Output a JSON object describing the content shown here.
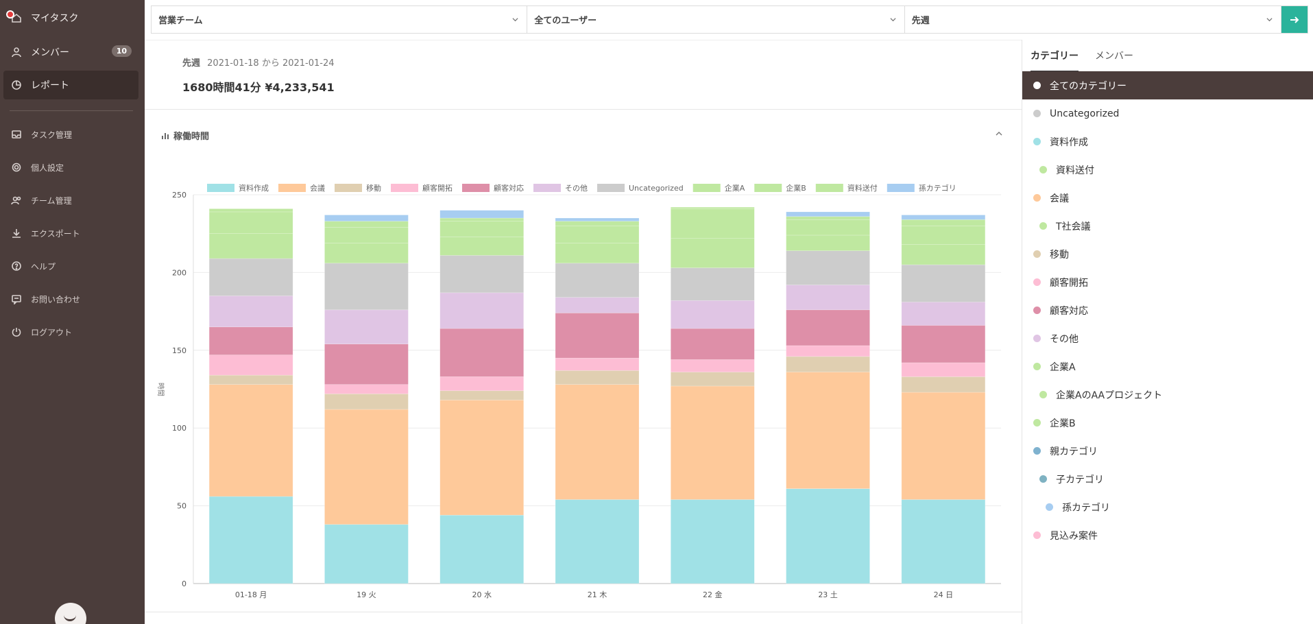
{
  "sidebar": {
    "items": [
      {
        "label": "マイタスク",
        "icon": "home-icon"
      },
      {
        "label": "メンバー",
        "icon": "user-icon",
        "badge": "10"
      },
      {
        "label": "レポート",
        "icon": "report-icon",
        "active": true
      },
      {
        "label": "タスク管理",
        "icon": "inbox-icon"
      },
      {
        "label": "個人設定",
        "icon": "gear-icon"
      },
      {
        "label": "チーム管理",
        "icon": "team-icon"
      },
      {
        "label": "エクスポート",
        "icon": "download-icon"
      },
      {
        "label": "ヘルプ",
        "icon": "help-icon"
      },
      {
        "label": "お問い合わせ",
        "icon": "message-icon"
      },
      {
        "label": "ログアウト",
        "icon": "power-icon"
      }
    ]
  },
  "filters": {
    "team": "営業チーム",
    "user": "全てのユーザー",
    "period": "先週"
  },
  "summary": {
    "period_label": "先週",
    "period_range": "2021-01-18 から 2021-01-24",
    "total": "1680時間41分 ¥4,233,541"
  },
  "section": {
    "title": "稼働時間"
  },
  "right_panel": {
    "tabs": [
      "カテゴリー",
      "メンバー"
    ],
    "active_tab": 0,
    "categories": [
      {
        "label": "全てのカテゴリー",
        "color": "#ffffff",
        "indent": 0,
        "active": true
      },
      {
        "label": "Uncategorized",
        "color": "#cccccc",
        "indent": 0
      },
      {
        "label": "資料作成",
        "color": "#a0e1e6",
        "indent": 0
      },
      {
        "label": "資料送付",
        "color": "#bfe8a0",
        "indent": 1
      },
      {
        "label": "会議",
        "color": "#fec99a",
        "indent": 0
      },
      {
        "label": "T社会議",
        "color": "#bfe8a0",
        "indent": 1
      },
      {
        "label": "移動",
        "color": "#e0cfb1",
        "indent": 0
      },
      {
        "label": "顧客開拓",
        "color": "#fdbdd4",
        "indent": 0
      },
      {
        "label": "顧客対応",
        "color": "#de8fa8",
        "indent": 0
      },
      {
        "label": "その他",
        "color": "#e0c5e4",
        "indent": 0
      },
      {
        "label": "企業A",
        "color": "#bfe8a0",
        "indent": 0
      },
      {
        "label": "企業AのAAプロジェクト",
        "color": "#bfe8a0",
        "indent": 1
      },
      {
        "label": "企業B",
        "color": "#bfe8a0",
        "indent": 0
      },
      {
        "label": "親カテゴリ",
        "color": "#7fb2cf",
        "indent": 0
      },
      {
        "label": "子カテゴリ",
        "color": "#7fb2c2",
        "indent": 1
      },
      {
        "label": "孫カテゴリ",
        "color": "#a7cdf1",
        "indent": 2
      },
      {
        "label": "見込み案件",
        "color": "#fdbdd4",
        "indent": 0
      }
    ]
  },
  "chart_data": {
    "type": "bar",
    "stacked": true,
    "categories": [
      "01-18 月",
      "19 火",
      "20 水",
      "21 木",
      "22 金",
      "23 土",
      "24 日"
    ],
    "ylabel": "時間",
    "ylim": [
      0,
      250
    ],
    "yticks": [
      0,
      50,
      100,
      150,
      200,
      250
    ],
    "legend_position": "top",
    "grid": true,
    "series": [
      {
        "name": "資料作成",
        "color": "#a0e1e6",
        "values": [
          56,
          38,
          44,
          54,
          54,
          61,
          54
        ]
      },
      {
        "name": "会議",
        "color": "#fec99a",
        "values": [
          72,
          74,
          74,
          74,
          73,
          75,
          69
        ]
      },
      {
        "name": "移動",
        "color": "#e0cfb1",
        "values": [
          6,
          10,
          6,
          9,
          9,
          10,
          10
        ]
      },
      {
        "name": "顧客開拓",
        "color": "#fdbdd4",
        "values": [
          13,
          6,
          9,
          8,
          8,
          7,
          9
        ]
      },
      {
        "name": "顧客対応",
        "color": "#de8fa8",
        "values": [
          18,
          26,
          31,
          29,
          20,
          23,
          24
        ]
      },
      {
        "name": "その他",
        "color": "#e0c5e4",
        "values": [
          20,
          22,
          23,
          10,
          18,
          16,
          15
        ]
      },
      {
        "name": "Uncategorized",
        "color": "#cccccc",
        "values": [
          24,
          30,
          24,
          22,
          21,
          22,
          24
        ]
      },
      {
        "name": "企業A",
        "color": "#bfe8a0",
        "values": [
          16,
          13,
          12,
          13,
          19,
          10,
          13
        ]
      },
      {
        "name": "企業B",
        "color": "#bfe8a0",
        "values": [
          14,
          10,
          10,
          11,
          19,
          10,
          12
        ]
      },
      {
        "name": "資料送付",
        "color": "#bfe8a0",
        "values": [
          2,
          4,
          2,
          3,
          1,
          2,
          4
        ]
      },
      {
        "name": "孫カテゴリ",
        "color": "#a7cdf1",
        "values": [
          0,
          4,
          5,
          2,
          0,
          3,
          3
        ]
      }
    ]
  }
}
